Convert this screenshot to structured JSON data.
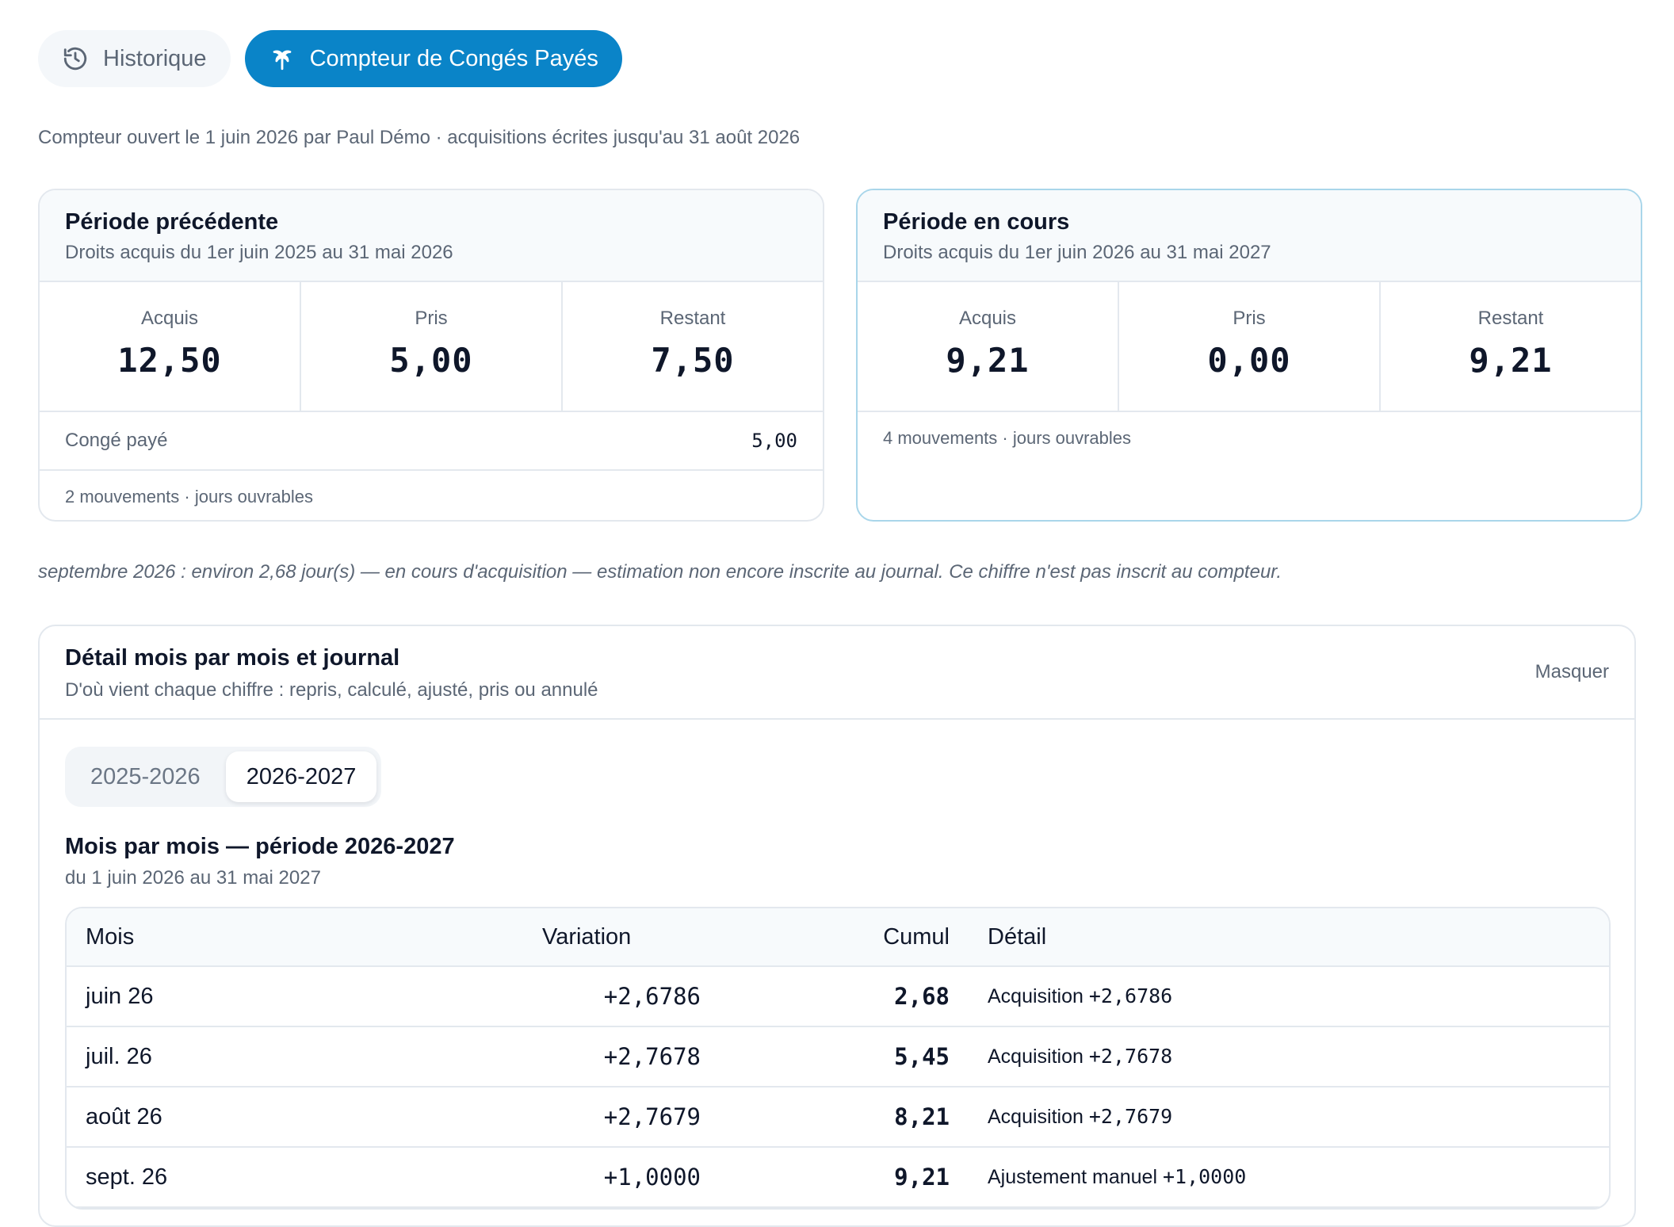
{
  "tabs": [
    {
      "label": "Historique",
      "icon": "history-icon",
      "active": false
    },
    {
      "label": "Compteur de Congés Payés",
      "icon": "palm-tree-icon",
      "active": true
    }
  ],
  "meta": "Compteur ouvert le 1 juin 2026 par Paul Démo · acquisitions écrites jusqu'au 31 août 2026",
  "previous": {
    "title": "Période précédente",
    "subtitle": "Droits acquis du 1er juin 2025 au 31 mai 2026",
    "acquired_label": "Acquis",
    "acquired": "12,50",
    "taken_label": "Pris",
    "taken": "5,00",
    "remaining_label": "Restant",
    "remaining": "7,50",
    "breakdown_label": "Congé payé",
    "breakdown_value": "5,00",
    "footer": "2 mouvements · jours ouvrables"
  },
  "current": {
    "title": "Période en cours",
    "subtitle": "Droits acquis du 1er juin 2026 au 31 mai 2027",
    "acquired_label": "Acquis",
    "acquired": "9,21",
    "taken_label": "Pris",
    "taken": "0,00",
    "remaining_label": "Restant",
    "remaining": "9,21",
    "footer": "4 mouvements · jours ouvrables"
  },
  "estimate": "septembre 2026 : environ 2,68 jour(s) — en cours d'acquisition — estimation non encore inscrite au journal. Ce chiffre n'est pas inscrit au compteur.",
  "detail": {
    "title": "Détail mois par mois et journal",
    "subtitle": "D'où vient chaque chiffre : repris, calculé, ajusté, pris ou annulé",
    "hide_label": "Masquer",
    "periods": [
      {
        "label": "2025-2026",
        "selected": false
      },
      {
        "label": "2026-2027",
        "selected": true
      }
    ],
    "month_title": "Mois par mois — période 2026-2027",
    "month_subtitle": "du 1 juin 2026 au 31 mai 2027",
    "columns": {
      "month": "Mois",
      "variation": "Variation",
      "cumul": "Cumul",
      "detail": "Détail"
    },
    "rows": [
      {
        "month": "juin 26",
        "variation": "+2,6786",
        "cumul": "2,68",
        "detail_text": "Acquisition",
        "detail_amount": "+2,6786"
      },
      {
        "month": "juil. 26",
        "variation": "+2,7678",
        "cumul": "5,45",
        "detail_text": "Acquisition",
        "detail_amount": "+2,7678"
      },
      {
        "month": "août 26",
        "variation": "+2,7679",
        "cumul": "8,21",
        "detail_text": "Acquisition",
        "detail_amount": "+2,7679"
      },
      {
        "month": "sept. 26",
        "variation": "+1,0000",
        "cumul": "9,21",
        "detail_text": "Ajustement manuel",
        "detail_amount": "+1,0000"
      }
    ]
  },
  "colors": {
    "accent": "#0a84c8",
    "border": "#e3e8ee",
    "muted": "#5b6675",
    "current_border": "#a9d6ea"
  }
}
